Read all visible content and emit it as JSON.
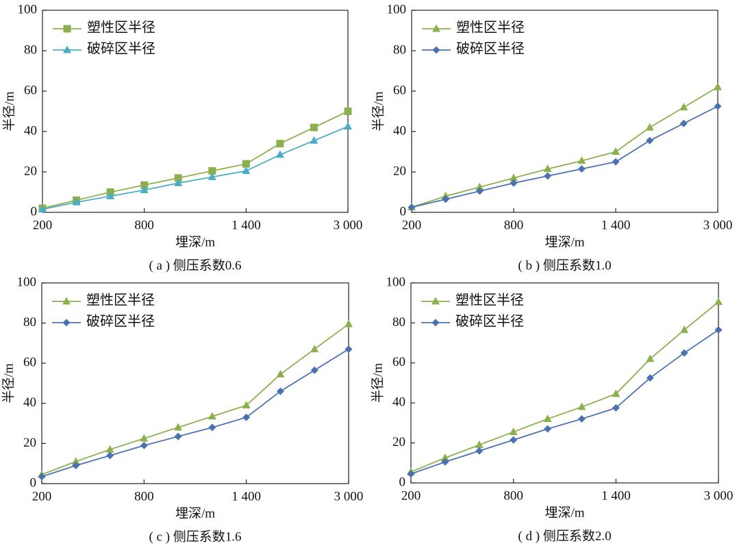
{
  "chart_data": [
    {
      "type": "line",
      "caption": "( a ) 侧压系数0.6",
      "xlabel": "埋深/m",
      "ylabel": "半径/m",
      "categories": [
        "200",
        null,
        null,
        "800",
        null,
        null,
        "1 400",
        null,
        null,
        "3 000"
      ],
      "ylim": [
        0,
        100
      ],
      "yticks": [
        0,
        20,
        40,
        60,
        80,
        100
      ],
      "legend": "upper left",
      "series": [
        {
          "name": "塑性区半径",
          "color": "#8db04e",
          "marker": "square",
          "values": [
            2,
            6,
            10,
            13.5,
            17,
            20.5,
            24,
            34,
            42,
            50
          ]
        },
        {
          "name": "破碎区半径",
          "color": "#4bacc6",
          "marker": "triangle",
          "values": [
            1.5,
            5,
            8,
            11,
            14.5,
            17.5,
            20.5,
            28.5,
            35.5,
            42.5
          ]
        }
      ]
    },
    {
      "type": "line",
      "caption": "( b ) 侧压系数1.0",
      "xlabel": "埋深/m",
      "ylabel": "半径/m",
      "categories": [
        "200",
        null,
        null,
        "800",
        null,
        null,
        "1 400",
        null,
        null,
        "3 000"
      ],
      "ylim": [
        0,
        100
      ],
      "yticks": [
        0,
        20,
        40,
        60,
        80,
        100
      ],
      "legend": "upper left",
      "series": [
        {
          "name": "塑性区半径",
          "color": "#8db04e",
          "marker": "triangle",
          "values": [
            2.5,
            8,
            12.5,
            17,
            21.5,
            25.5,
            30,
            42,
            52,
            62
          ]
        },
        {
          "name": "破碎区半径",
          "color": "#4a72b0",
          "marker": "diamond",
          "values": [
            2.5,
            6.5,
            10.5,
            14.5,
            18,
            21.5,
            25,
            35.5,
            44,
            52.5
          ]
        }
      ]
    },
    {
      "type": "line",
      "caption": "( c ) 侧压系数1.6",
      "xlabel": "埋深/m",
      "ylabel": "半径/m",
      "categories": [
        "200",
        null,
        null,
        "800",
        null,
        null,
        "1 400",
        null,
        null,
        "3 000"
      ],
      "ylim": [
        0,
        100
      ],
      "yticks": [
        0,
        20,
        40,
        60,
        80,
        100
      ],
      "legend": "upper left",
      "series": [
        {
          "name": "塑性区半径",
          "color": "#8db04e",
          "marker": "triangle",
          "values": [
            4.5,
            11,
            17,
            22.5,
            28,
            33.5,
            39,
            54.5,
            67,
            79.5
          ]
        },
        {
          "name": "破碎区半径",
          "color": "#4a72b0",
          "marker": "diamond",
          "values": [
            3.5,
            9,
            14,
            19,
            23.5,
            28,
            33,
            46,
            56.5,
            67
          ]
        }
      ]
    },
    {
      "type": "line",
      "caption": "( d ) 侧压系数2.0",
      "xlabel": "埋深/m",
      "ylabel": "半径/m",
      "categories": [
        "200",
        null,
        null,
        "800",
        null,
        null,
        "1 400",
        null,
        null,
        "3 000"
      ],
      "ylim": [
        0,
        100
      ],
      "yticks": [
        0,
        20,
        40,
        60,
        80,
        100
      ],
      "legend": "upper left",
      "series": [
        {
          "name": "塑性区半径",
          "color": "#8db04e",
          "marker": "triangle",
          "values": [
            5.5,
            12.5,
            19,
            25.5,
            32,
            38,
            44.5,
            62,
            76.5,
            90.5
          ]
        },
        {
          "name": "破碎区半径",
          "color": "#4a72b0",
          "marker": "diamond",
          "values": [
            4.5,
            10.5,
            16,
            21.5,
            27,
            32,
            37.5,
            52.5,
            65,
            76.5
          ]
        }
      ]
    }
  ]
}
